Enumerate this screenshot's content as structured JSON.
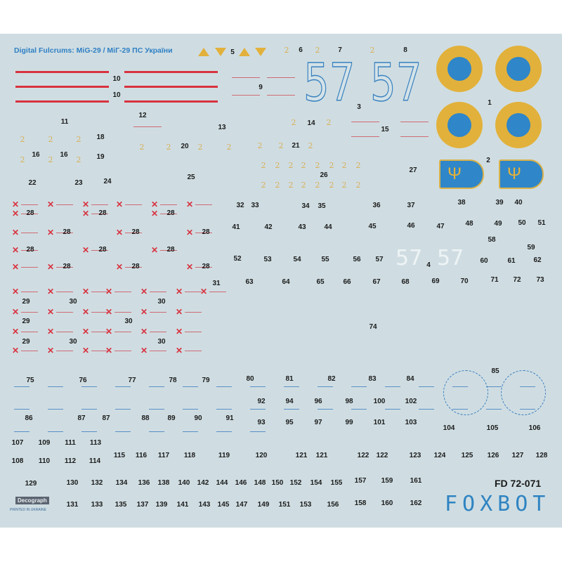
{
  "title": "Digital Fulcrums: MiG-29  / МіГ-29 ПС України",
  "big_numbers": [
    "57",
    "57"
  ],
  "white_numbers": [
    "57",
    "57"
  ],
  "decal_numbers": [
    "5",
    "6",
    "7",
    "8",
    "10",
    "10",
    "9",
    "1",
    "3",
    "11",
    "12",
    "13",
    "14",
    "15",
    "18",
    "16",
    "16",
    "19",
    "20",
    "21",
    "2",
    "22",
    "23",
    "24",
    "25",
    "26",
    "27",
    "32",
    "33",
    "34",
    "35",
    "36",
    "37",
    "38",
    "39",
    "40",
    "28",
    "28",
    "28",
    "28",
    "28",
    "28",
    "28",
    "28",
    "28",
    "28",
    "28",
    "28",
    "41",
    "42",
    "43",
    "44",
    "45",
    "46",
    "47",
    "48",
    "49",
    "50",
    "51",
    "58",
    "59",
    "52",
    "53",
    "54",
    "55",
    "56",
    "57",
    "4",
    "60",
    "61",
    "62",
    "63",
    "64",
    "65",
    "66",
    "67",
    "68",
    "69",
    "70",
    "71",
    "72",
    "73",
    "31",
    "29",
    "30",
    "30",
    "29",
    "30",
    "29",
    "30",
    "30",
    "74",
    "75",
    "76",
    "77",
    "78",
    "79",
    "80",
    "81",
    "82",
    "83",
    "84",
    "85",
    "92",
    "94",
    "96",
    "98",
    "100",
    "102",
    "86",
    "87",
    "87",
    "88",
    "89",
    "90",
    "91",
    "93",
    "95",
    "97",
    "99",
    "101",
    "103",
    "104",
    "105",
    "106",
    "107",
    "109",
    "111",
    "113",
    "108",
    "110",
    "112",
    "114",
    "115",
    "116",
    "117",
    "118",
    "119",
    "120",
    "121",
    "121",
    "122",
    "122",
    "123",
    "124",
    "125",
    "126",
    "127",
    "128",
    "129",
    "130",
    "132",
    "134",
    "136",
    "138",
    "140",
    "142",
    "144",
    "146",
    "148",
    "150",
    "152",
    "154",
    "155",
    "157",
    "159",
    "161",
    "131",
    "133",
    "135",
    "137",
    "139",
    "141",
    "143",
    "145",
    "147",
    "149",
    "151",
    "153",
    "156",
    "158",
    "160",
    "162"
  ],
  "product_code": "FD 72-071",
  "brand": "FOXBOT",
  "maker_logo": "Decograph",
  "printed_note": "PRINTED IN UKRAINE",
  "colors": {
    "sheet": "#cfdde2",
    "red": "#d8323f",
    "yellow": "#e2b13b",
    "blue": "#2f86c8"
  }
}
